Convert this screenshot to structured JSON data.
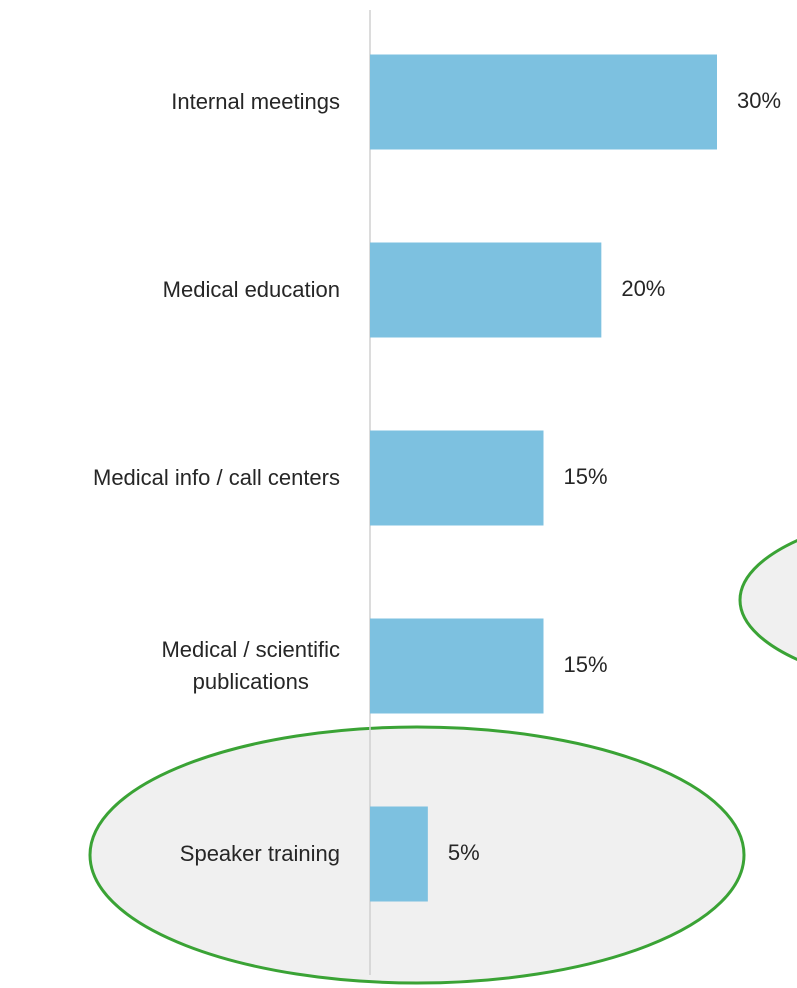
{
  "chart_data": {
    "type": "bar",
    "orientation": "horizontal",
    "categories": [
      "Internal meetings",
      "Medical education",
      "Medical info / call centers",
      "Medical / scientific\npublications",
      "Speaker training"
    ],
    "values": [
      30,
      20,
      15,
      15,
      5
    ],
    "value_labels": [
      "30%",
      "20%",
      "15%",
      "15%",
      "5%"
    ],
    "color": "#7dc1e0",
    "highlight_color": "#3aa335"
  }
}
